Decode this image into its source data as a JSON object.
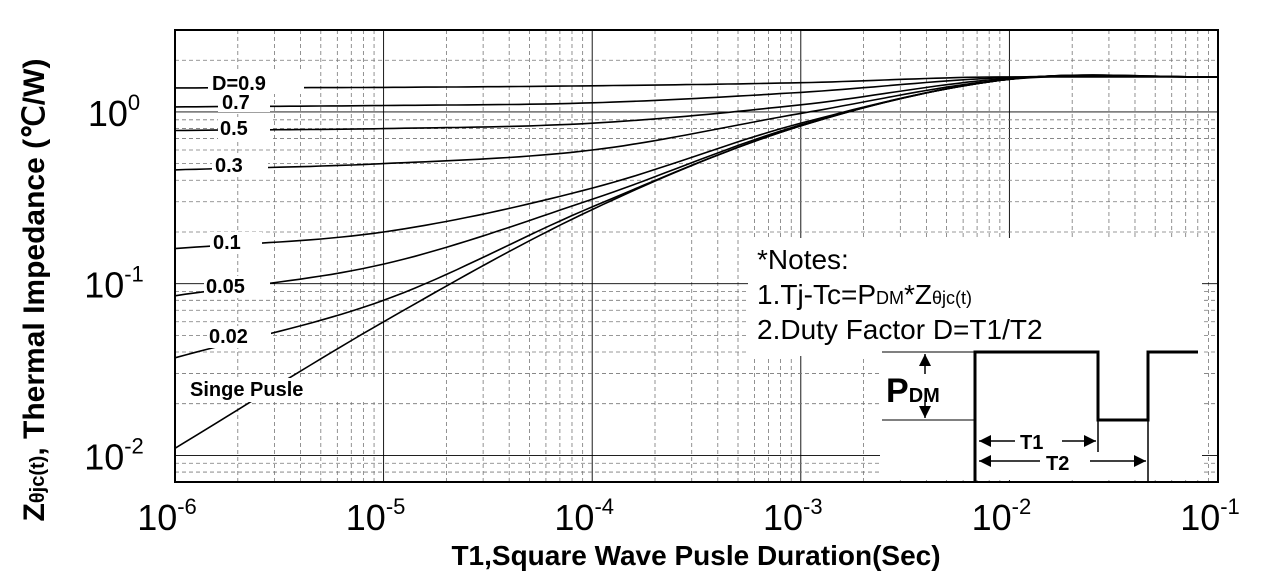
{
  "chart_data": {
    "type": "line",
    "title": "",
    "xlabel": "T1,Square Wave Pusle Duration(Sec)",
    "ylabel_main": "Z",
    "ylabel_sub": "θjc(t)",
    "ylabel_rest": ", Thermal Impedance (℃/W)",
    "x_scale": "log",
    "y_scale": "log",
    "xlim": [
      1e-06,
      0.1
    ],
    "ylim": [
      0.007,
      3
    ],
    "grid": true,
    "x_ticks": [
      {
        "base": "10",
        "exp": "-6",
        "value": 1e-06
      },
      {
        "base": "10",
        "exp": "-5",
        "value": 1e-05
      },
      {
        "base": "10",
        "exp": "-4",
        "value": 0.0001
      },
      {
        "base": "10",
        "exp": "-3",
        "value": 0.001
      },
      {
        "base": "10",
        "exp": "-2",
        "value": 0.01
      },
      {
        "base": "10",
        "exp": "-1",
        "value": 0.1
      }
    ],
    "y_ticks": [
      {
        "base": "10",
        "exp": "0",
        "value": 1
      },
      {
        "base": "10",
        "exp": "-1",
        "value": 0.1
      },
      {
        "base": "10",
        "exp": "-2",
        "value": 0.01
      }
    ],
    "series": [
      {
        "name": "D=0.9",
        "x": [
          1e-06,
          1e-05,
          0.0001,
          0.001,
          0.01,
          0.1
        ],
        "y": [
          1.38,
          1.39,
          1.42,
          1.48,
          1.6,
          1.6
        ]
      },
      {
        "name": "0.7",
        "x": [
          1e-06,
          1e-05,
          0.0001,
          0.001,
          0.01,
          0.1
        ],
        "y": [
          1.07,
          1.09,
          1.13,
          1.3,
          1.59,
          1.6
        ]
      },
      {
        "name": "0.5",
        "x": [
          1e-06,
          1e-05,
          0.0001,
          0.001,
          0.01,
          0.1
        ],
        "y": [
          0.78,
          0.8,
          0.86,
          1.1,
          1.57,
          1.6
        ]
      },
      {
        "name": "0.3",
        "x": [
          1e-06,
          1e-05,
          0.0001,
          0.001,
          0.01,
          0.1
        ],
        "y": [
          0.46,
          0.5,
          0.6,
          0.98,
          1.55,
          1.6
        ]
      },
      {
        "name": "0.1",
        "x": [
          1e-06,
          1e-05,
          0.0001,
          0.001,
          0.01,
          0.1
        ],
        "y": [
          0.16,
          0.2,
          0.36,
          0.86,
          1.55,
          1.6
        ]
      },
      {
        "name": "0.05",
        "x": [
          1e-06,
          1e-05,
          0.0001,
          0.001,
          0.01,
          0.1
        ],
        "y": [
          0.085,
          0.13,
          0.31,
          0.84,
          1.55,
          1.6
        ]
      },
      {
        "name": "0.02",
        "x": [
          1e-06,
          1e-05,
          0.0001,
          0.001,
          0.01,
          0.1
        ],
        "y": [
          0.037,
          0.08,
          0.28,
          0.83,
          1.55,
          1.6
        ]
      },
      {
        "name": "Singe Pusle",
        "x": [
          1e-06,
          1e-05,
          0.0001,
          0.001,
          0.01,
          0.1
        ],
        "y": [
          0.011,
          0.06,
          0.27,
          0.83,
          1.55,
          1.6
        ]
      }
    ]
  },
  "curve_labels": {
    "d09": "D=0.9",
    "d07": "0.7",
    "d05": "0.5",
    "d03": "0.3",
    "d01": "0.1",
    "d005": "0.05",
    "d002": "0.02",
    "single": "Singe Pusle"
  },
  "notes": {
    "heading": "*Notes:",
    "line1_pre": "1.Tj-Tc=P",
    "line1_sub": "DM",
    "line1_post": "*Z",
    "line1_sub2": "θjc(t)",
    "line2": "2.Duty Factor D=T1/T2"
  },
  "inset": {
    "pdm_main": "P",
    "pdm_sub": "DM",
    "t1": "T1",
    "t2": "T2"
  }
}
